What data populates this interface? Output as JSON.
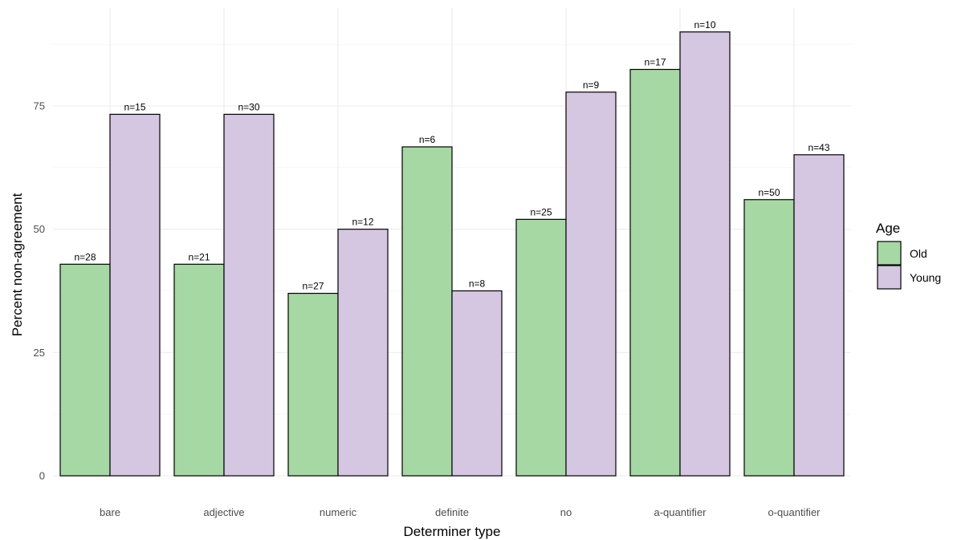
{
  "chart_data": {
    "type": "bar",
    "title": "",
    "xlabel": "Determiner type",
    "ylabel": "Percent non-agreement",
    "categories": [
      "bare",
      "adjective",
      "numeric",
      "definite",
      "no",
      "a-quantifier",
      "o-quantifier"
    ],
    "ylim": [
      0,
      90
    ],
    "yticks": [
      0,
      25,
      50,
      75
    ],
    "grid": true,
    "legend": {
      "title": "Age",
      "position": "right"
    },
    "series": [
      {
        "name": "Old",
        "color": "#a6d8a3",
        "values": [
          42.9,
          42.9,
          37.0,
          66.7,
          52.0,
          82.4,
          56.0
        ],
        "labels": [
          "n=28",
          "n=21",
          "n=27",
          "n=6",
          "n=25",
          "n=17",
          "n=50"
        ]
      },
      {
        "name": "Young",
        "color": "#d5c6e2",
        "values": [
          73.3,
          73.3,
          50.0,
          37.5,
          77.8,
          90.0,
          65.1
        ],
        "labels": [
          "n=15",
          "n=30",
          "n=12",
          "n=8",
          "n=9",
          "n=10",
          "n=43"
        ]
      }
    ]
  }
}
